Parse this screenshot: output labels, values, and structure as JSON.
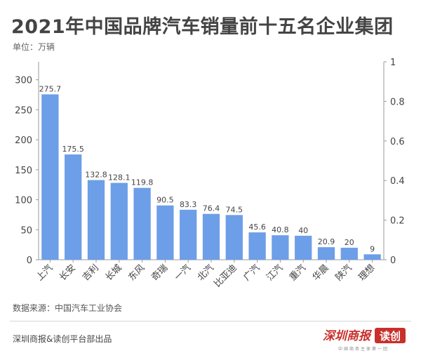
{
  "header": {
    "title": "2021年中国品牌汽车销量前十五名企业集团",
    "unit": "单位：万辆"
  },
  "footer": {
    "source": "数据来源：中国汽车工业协会",
    "publisher": "深圳商报&读创平台部出品"
  },
  "logo": {
    "text_main": "深圳商报",
    "text_badge": "读创",
    "subtext": "中国商务主体第一团"
  },
  "colors": {
    "bar": "#6d9ee8",
    "axis": "#999999",
    "text": "#444444",
    "logo_red": "#c8302c"
  },
  "chart_data": {
    "type": "bar",
    "categories": [
      "上汽",
      "长安",
      "吉利",
      "长城",
      "东风",
      "奇瑞",
      "一汽",
      "北汽",
      "比亚迪",
      "广汽",
      "江汽",
      "重汽",
      "华晨",
      "陕汽",
      "理想"
    ],
    "values": [
      275.7,
      175.5,
      132.8,
      128.1,
      119.8,
      90.5,
      83.3,
      76.4,
      74.5,
      45.6,
      40.8,
      40,
      20.9,
      20,
      9
    ],
    "value_labels": [
      "275.7",
      "175.5",
      "132.8",
      "128.1",
      "119.8",
      "90.5",
      "83.3",
      "76.4",
      "74.5",
      "45.6",
      "40.8",
      "40",
      "20.9",
      "20",
      "9"
    ],
    "ylim": [
      0,
      330
    ],
    "yticks": [
      "0",
      "50",
      "100",
      "150",
      "200",
      "250",
      "300"
    ],
    "ytick_values": [
      0,
      50,
      100,
      150,
      200,
      250,
      300
    ],
    "y2lim": [
      0,
      1
    ],
    "y2ticks": [
      "0",
      "0.2",
      "0.4",
      "0.6",
      "0.8",
      "1"
    ],
    "y2tick_values": [
      0,
      0.2,
      0.4,
      0.6,
      0.8,
      1
    ],
    "grid": false
  }
}
